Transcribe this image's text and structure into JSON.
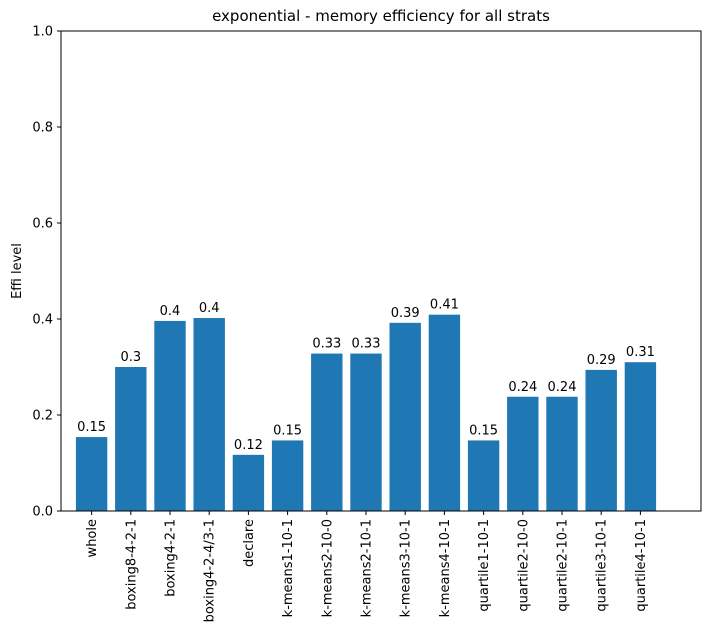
{
  "chart_data": {
    "type": "bar",
    "title": "exponential - memory efficiency for all strats",
    "xlabel": "",
    "ylabel": "Effi level",
    "ylim": [
      0,
      1
    ],
    "yticks": [
      0.0,
      0.2,
      0.4,
      0.6,
      0.8,
      1.0
    ],
    "ytick_labels": [
      "0.0",
      "0.2",
      "0.4",
      "0.6",
      "0.8",
      "1.0"
    ],
    "grid": false,
    "legend": "none",
    "bar_color": "#1f77b4",
    "categories": [
      "whole",
      "boxing8-4-2-1",
      "boxing4-2-1",
      "boxing4-2-4/3-1",
      "declare",
      "k-means1-10-1",
      "k-means2-10-0",
      "k-means2-10-1",
      "k-means3-10-1",
      "k-means4-10-1",
      "quartile1-10-1",
      "quartile2-10-0",
      "quartile2-10-1",
      "quartile3-10-1",
      "quartile4-10-1"
    ],
    "values": [
      0.154,
      0.3,
      0.396,
      0.402,
      0.117,
      0.147,
      0.328,
      0.328,
      0.392,
      0.409,
      0.147,
      0.238,
      0.238,
      0.294,
      0.31
    ],
    "data_labels": [
      "0.15",
      "0.3",
      "0.4",
      "0.4",
      "0.12",
      "0.15",
      "0.33",
      "0.33",
      "0.39",
      "0.41",
      "0.15",
      "0.24",
      "0.24",
      "0.29",
      "0.31"
    ]
  }
}
